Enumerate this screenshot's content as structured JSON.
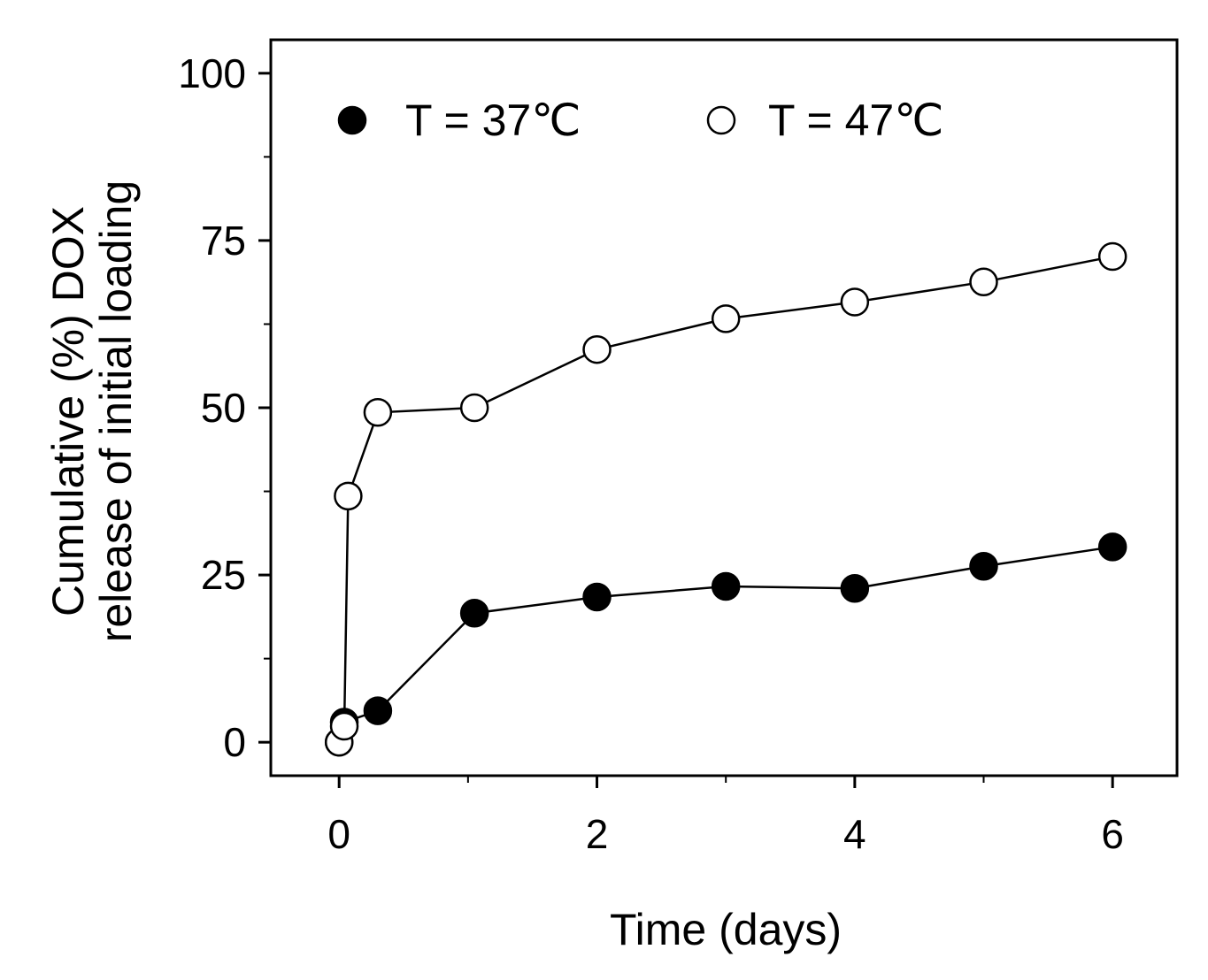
{
  "chart_data": {
    "type": "scatter",
    "title": "",
    "xlabel": "Time (days)",
    "ylabel_lines": [
      "Cumulative (%) DOX",
      "release of initial loading"
    ],
    "xlim": [
      -0.53,
      6.5
    ],
    "ylim": [
      -5,
      105
    ],
    "x_ticks": [
      0,
      2,
      4,
      6
    ],
    "x_minor_ticks": [
      1,
      3,
      5
    ],
    "y_ticks": [
      0,
      25,
      50,
      75,
      100
    ],
    "y_minor_ticks": [
      12.5,
      37.5,
      62.5,
      87.5
    ],
    "grid": false,
    "legend_position": "top-left",
    "series": [
      {
        "name": "T = 37℃",
        "marker": "filled-circle",
        "color": "#000000",
        "points": [
          {
            "x": 0,
            "y": 0
          },
          {
            "x": 0.04,
            "y": 3
          },
          {
            "x": 0.3,
            "y": 4.7
          },
          {
            "x": 1.05,
            "y": 19.3
          },
          {
            "x": 2,
            "y": 21.7
          },
          {
            "x": 3,
            "y": 23.3
          },
          {
            "x": 4,
            "y": 23.0
          },
          {
            "x": 5,
            "y": 26.3
          },
          {
            "x": 6,
            "y": 29.2
          }
        ]
      },
      {
        "name": "T = 47℃",
        "marker": "open-circle",
        "color": "#000000",
        "points": [
          {
            "x": 0,
            "y": 0
          },
          {
            "x": 0.04,
            "y": 2.4
          },
          {
            "x": 0.07,
            "y": 36.8
          },
          {
            "x": 0.3,
            "y": 49.3
          },
          {
            "x": 1.05,
            "y": 50.0
          },
          {
            "x": 2,
            "y": 58.7
          },
          {
            "x": 3,
            "y": 63.3
          },
          {
            "x": 4,
            "y": 65.8
          },
          {
            "x": 5,
            "y": 68.8
          },
          {
            "x": 6,
            "y": 72.6
          }
        ]
      }
    ]
  }
}
